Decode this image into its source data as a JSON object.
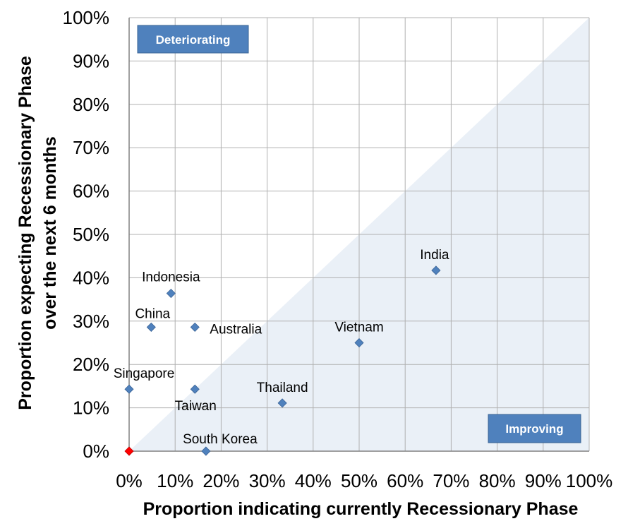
{
  "chart_data": {
    "type": "scatter",
    "title": "",
    "xlabel": "Proportion indicating currently Recessionary Phase",
    "ylabel_lines": [
      "Proportion expecting Recessionary Phase",
      "over the next 6 months"
    ],
    "xlim": [
      0,
      100
    ],
    "ylim": [
      0,
      100
    ],
    "x_ticks": [
      "0%",
      "10%",
      "20%",
      "30%",
      "40%",
      "50%",
      "60%",
      "70%",
      "80%",
      "90%",
      "100%"
    ],
    "y_ticks": [
      "0%",
      "10%",
      "20%",
      "30%",
      "40%",
      "50%",
      "60%",
      "70%",
      "80%",
      "90%",
      "100%"
    ],
    "grid": true,
    "shaded_region": "below y = x diagonal",
    "region_labels": {
      "upper_left": "Deteriorating",
      "lower_right": "Improving"
    },
    "points": [
      {
        "label": "India",
        "x": 66.7,
        "y": 41.7
      },
      {
        "label": "Vietnam",
        "x": 50.0,
        "y": 25.0
      },
      {
        "label": "Thailand",
        "x": 33.3,
        "y": 11.1
      },
      {
        "label": "South Korea",
        "x": 16.7,
        "y": 0.0
      },
      {
        "label": "Indonesia",
        "x": 9.1,
        "y": 36.4
      },
      {
        "label": "China",
        "x": 4.8,
        "y": 28.6
      },
      {
        "label": "Australia",
        "x": 14.3,
        "y": 28.6
      },
      {
        "label": "Singapore",
        "x": 0.0,
        "y": 14.3
      },
      {
        "label": "Taiwan",
        "x": 14.3,
        "y": 14.3
      },
      {
        "label": "",
        "x": 0.0,
        "y": 0.0,
        "highlight": true
      }
    ],
    "colors": {
      "marker": "#4f81bd",
      "highlight_marker": "#ff0000",
      "shade": "#eaf0f7",
      "box": "#4f81bd",
      "grid": "#b0b0b0"
    }
  }
}
